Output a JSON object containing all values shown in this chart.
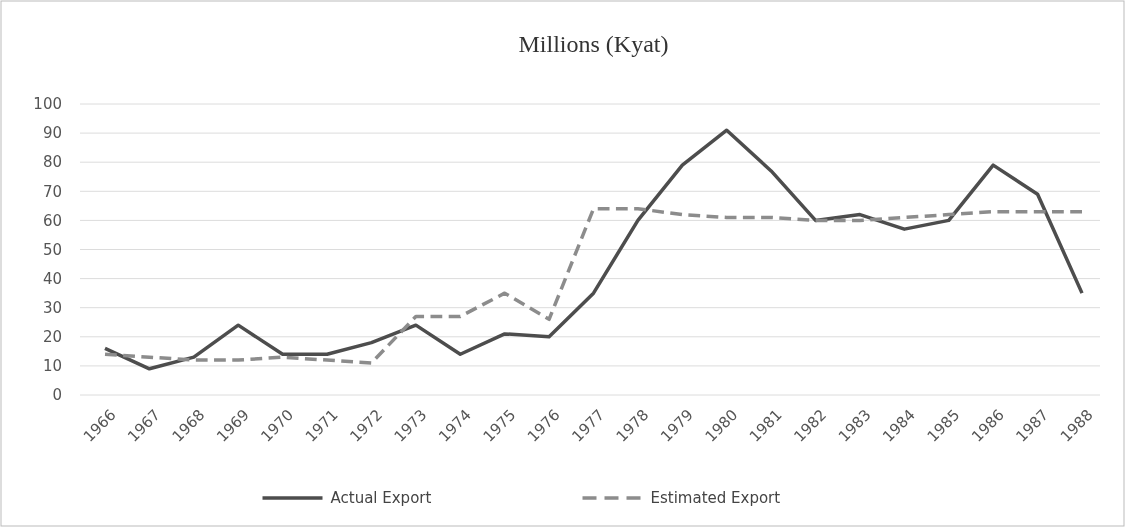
{
  "chart_data": {
    "type": "line",
    "title": "Millions (Kyat)",
    "categories": [
      "1966",
      "1967",
      "1968",
      "1969",
      "1970",
      "1971",
      "1972",
      "1973",
      "1974",
      "1975",
      "1976",
      "1977",
      "1978",
      "1979",
      "1980",
      "1981",
      "1982",
      "1983",
      "1984",
      "1985",
      "1986",
      "1987",
      "1988"
    ],
    "series": [
      {
        "name": "Actual Export",
        "color": "#4d4d4d",
        "line_style": "solid",
        "values": [
          16,
          9,
          13,
          24,
          14,
          14,
          18,
          24,
          14,
          21,
          20,
          35,
          60,
          79,
          91,
          77,
          60,
          62,
          57,
          60,
          79,
          69,
          35
        ]
      },
      {
        "name": "Estimated Export",
        "color": "#8c8c8c",
        "line_style": "dashed",
        "values": [
          14,
          13,
          12,
          12,
          13,
          12,
          11,
          27,
          27,
          35,
          26,
          64,
          64,
          62,
          61,
          61,
          60,
          60,
          61,
          62,
          63,
          63,
          63
        ]
      }
    ],
    "ylim": [
      0,
      100
    ],
    "yticks": [
      0,
      10,
      20,
      30,
      40,
      50,
      60,
      70,
      80,
      90,
      100
    ],
    "grid": "y",
    "legend": "bottom"
  }
}
